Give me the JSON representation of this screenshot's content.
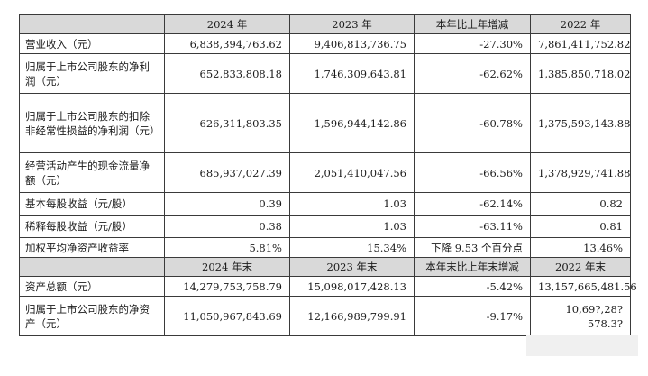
{
  "header1": [
    "",
    "2024 年",
    "2023 年",
    "本年比上年增减",
    "2022 年"
  ],
  "rows1": [
    {
      "label": "营业收入（元）",
      "v2024": "6,838,394,763.62",
      "v2023": "9,406,813,736.75",
      "change": "-27.30%",
      "v2022": "7,861,411,752.82"
    },
    {
      "label": "归属于上市公司股东的净利润（元）",
      "v2024": "652,833,808.18",
      "v2023": "1,746,309,643.81",
      "change": "-62.62%",
      "v2022": "1,385,850,718.02"
    },
    {
      "label": "归属于上市公司股东的扣除非经常性损益的净利润（元）",
      "v2024": "626,311,803.35",
      "v2023": "1,596,944,142.86",
      "change": "-60.78%",
      "v2022": "1,375,593,143.88"
    },
    {
      "label": "经营活动产生的现金流量净额（元）",
      "v2024": "685,937,027.39",
      "v2023": "2,051,410,047.56",
      "change": "-66.56%",
      "v2022": "1,378,929,741.88"
    },
    {
      "label": "基本每股收益（元/股）",
      "v2024": "0.39",
      "v2023": "1.03",
      "change": "-62.14%",
      "v2022": "0.82"
    },
    {
      "label": "稀释每股收益（元/股）",
      "v2024": "0.38",
      "v2023": "1.03",
      "change": "-63.11%",
      "v2022": "0.81"
    },
    {
      "label": "加权平均净资产收益率",
      "v2024": "5.81%",
      "v2023": "15.34%",
      "change": "下降 9.53 个百分点",
      "v2022": "13.46%"
    }
  ],
  "header2": [
    "",
    "2024 年末",
    "2023 年末",
    "本年末比上年末增减",
    "2022 年末"
  ],
  "rows2": [
    {
      "label": "资产总额（元）",
      "v2024": "14,279,753,758.79",
      "v2023": "15,098,017,428.13",
      "change": "-5.42%",
      "v2022": "13,157,665,481.56"
    },
    {
      "label": "归属于上市公司股东的净资产（元）",
      "v2024": "11,050,967,843.69",
      "v2023": "12,166,989,799.91",
      "change": "-9.17%",
      "v2022": "10,69?,28? 578.3?"
    }
  ]
}
